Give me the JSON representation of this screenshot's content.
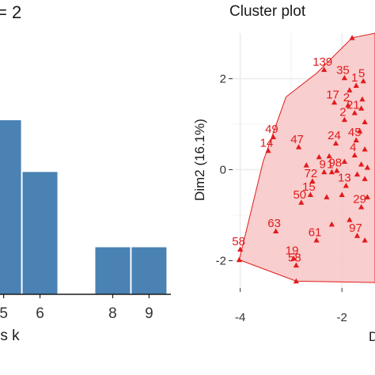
{
  "colors": {
    "bar": "#4a82b4",
    "cluster_fill": "#f7c6c6",
    "cluster_edge": "#e31a1c",
    "point": "#e31a1c",
    "axis_text": "#1a1a1a",
    "grid": "#ebebeb"
  },
  "chart_data": [
    {
      "type": "bar",
      "title": "= 2",
      "xlabel": "rs k",
      "categories": [
        "5",
        "6",
        "8",
        "9"
      ],
      "category_labels": [
        "5",
        "6",
        "8",
        "9"
      ],
      "category_x": [
        5,
        6,
        8,
        9
      ],
      "values": [
        0.74,
        0.52,
        0.2,
        0.2
      ],
      "xlim": [
        4.9,
        9.6
      ],
      "ylim": [
        0,
        1.15
      ],
      "grid": false
    },
    {
      "type": "scatter",
      "title": "Cluster plot",
      "xlabel": "D",
      "ylabel": "Dim2 (16.1%)",
      "xlim": [
        -4.15,
        -1.35
      ],
      "ylim": [
        -2.6,
        3.0
      ],
      "x_ticks": [
        -4,
        -2
      ],
      "y_ticks": [
        2,
        0,
        -2
      ],
      "grid": true,
      "hull": [
        [
          -4.02,
          -1.98
        ],
        [
          -2.9,
          -2.45
        ],
        [
          -1.35,
          -2.48
        ],
        [
          -1.35,
          3.0
        ],
        [
          -1.8,
          2.9
        ],
        [
          -2.5,
          2.12
        ],
        [
          -3.1,
          1.6
        ],
        [
          -3.55,
          0.18
        ]
      ],
      "points": [
        {
          "label": "139",
          "x": -2.35,
          "y": 2.2
        },
        {
          "label": "35",
          "x": -1.95,
          "y": 2.02
        },
        {
          "label": "5",
          "x": -1.58,
          "y": 1.95
        },
        {
          "label": "1",
          "x": -1.72,
          "y": 1.85
        },
        {
          "label": "17",
          "x": -2.15,
          "y": 1.48
        },
        {
          "label": "2",
          "x": -1.88,
          "y": 1.42
        },
        {
          "label": "21",
          "x": -1.75,
          "y": 1.25
        },
        {
          "label": "2",
          "x": -1.95,
          "y": 1.1
        },
        {
          "label": "49",
          "x": -3.35,
          "y": 0.72
        },
        {
          "label": "47",
          "x": -2.85,
          "y": 0.5
        },
        {
          "label": "24",
          "x": -2.12,
          "y": 0.58
        },
        {
          "label": "45",
          "x": -1.72,
          "y": 0.65
        },
        {
          "label": "14",
          "x": -3.45,
          "y": 0.42
        },
        {
          "label": "4",
          "x": -1.75,
          "y": 0.32
        },
        {
          "label": "9",
          "x": -2.35,
          "y": -0.05
        },
        {
          "label": "1",
          "x": -2.2,
          "y": -0.05
        },
        {
          "label": "98",
          "x": -2.1,
          "y": -0.02
        },
        {
          "label": "72",
          "x": -2.58,
          "y": -0.25
        },
        {
          "label": "13",
          "x": -1.92,
          "y": -0.35
        },
        {
          "label": "15",
          "x": -2.62,
          "y": -0.55
        },
        {
          "label": "50",
          "x": -2.8,
          "y": -0.72
        },
        {
          "label": "29",
          "x": -1.62,
          "y": -0.82
        },
        {
          "label": "63",
          "x": -3.3,
          "y": -1.35
        },
        {
          "label": "97",
          "x": -1.7,
          "y": -1.45
        },
        {
          "label": "61",
          "x": -2.5,
          "y": -1.55
        },
        {
          "label": "58",
          "x": -4.0,
          "y": -1.75
        },
        {
          "label": "19",
          "x": -2.95,
          "y": -1.95
        },
        {
          "label": "58",
          "x": -2.9,
          "y": -2.1
        }
      ],
      "extra_markers": [
        [
          -1.85,
          1.75
        ],
        [
          -1.6,
          1.55
        ],
        [
          -1.55,
          1.05
        ],
        [
          -1.65,
          0.85
        ],
        [
          -1.55,
          0.45
        ],
        [
          -1.62,
          0.12
        ],
        [
          -1.5,
          0.05
        ],
        [
          -1.7,
          -0.1
        ],
        [
          -1.55,
          -0.2
        ],
        [
          -2.45,
          0.28
        ],
        [
          -2.25,
          0.3
        ],
        [
          -1.95,
          0.18
        ],
        [
          -2.7,
          0.1
        ],
        [
          -2.0,
          -0.55
        ],
        [
          -2.3,
          -0.6
        ],
        [
          -1.5,
          -0.6
        ],
        [
          -1.85,
          -1.1
        ],
        [
          -2.2,
          -1.2
        ],
        [
          -1.55,
          -1.55
        ],
        [
          -1.62,
          1.35
        ]
      ]
    }
  ]
}
